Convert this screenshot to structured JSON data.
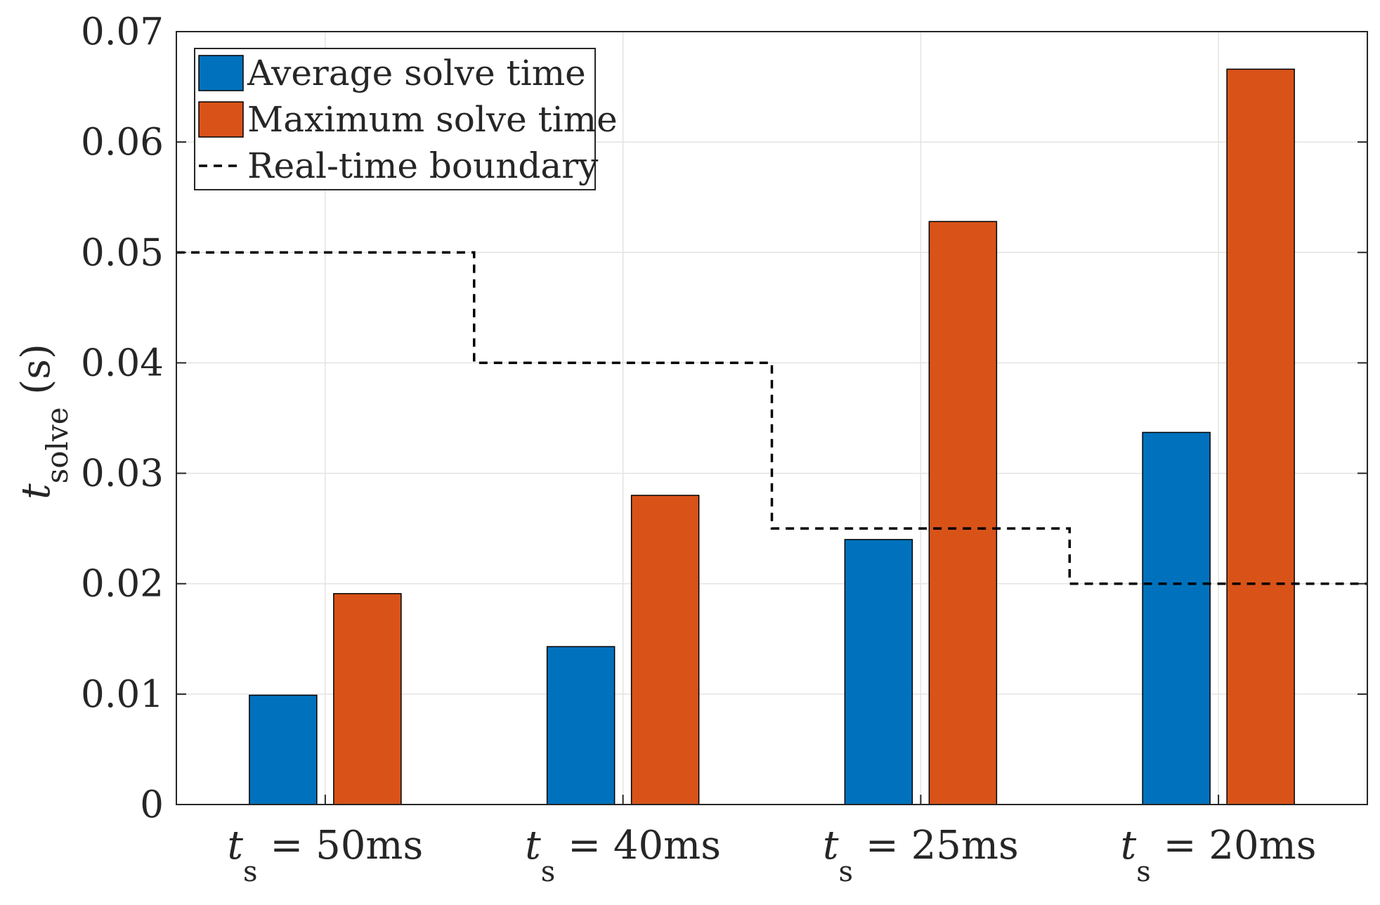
{
  "chart_data": {
    "type": "bar",
    "categories": [
      {
        "var": "t",
        "sub": "s",
        "rest": " = 50ms"
      },
      {
        "var": "t",
        "sub": "s",
        "rest": " = 40ms"
      },
      {
        "var": "t",
        "sub": "s",
        "rest": " = 25ms"
      },
      {
        "var": "t",
        "sub": "s",
        "rest": " = 20ms"
      }
    ],
    "series": [
      {
        "name": "Average solve time",
        "color": "#0072BD",
        "values": [
          0.0099,
          0.0143,
          0.024,
          0.0337
        ]
      },
      {
        "name": "Maximum solve time",
        "color": "#D95319",
        "values": [
          0.0191,
          0.028,
          0.0528,
          0.0666
        ]
      }
    ],
    "boundary": {
      "name": "Real-time boundary",
      "color": "#000000",
      "values": [
        0.05,
        0.04,
        0.025,
        0.02
      ]
    },
    "ylabel": {
      "var": "t",
      "sub": "solve",
      "rest": " (s)"
    },
    "ylim": [
      0,
      0.07
    ],
    "yticks": [
      "0",
      "0.01",
      "0.02",
      "0.03",
      "0.04",
      "0.05",
      "0.06",
      "0.07"
    ],
    "grid": true,
    "legend_position": "top-left"
  }
}
